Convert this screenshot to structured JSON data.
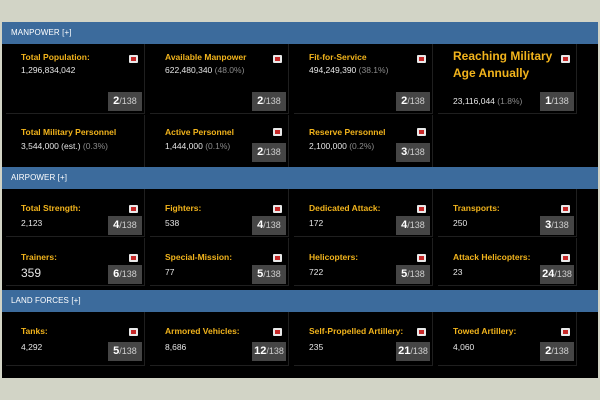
{
  "sections": {
    "manpower": {
      "title": "MANPOWER [+]",
      "items": [
        {
          "label": "Total Population:",
          "value": "1,296,834,042",
          "extra": "",
          "rank": "2",
          "total": "/138"
        },
        {
          "label": "Available Manpower",
          "value": "622,480,340",
          "extra": "(48.0%)",
          "rank": "2",
          "total": "/138"
        },
        {
          "label": "Fit-for-Service",
          "value": "494,249,390",
          "extra": "(38.1%)",
          "rank": "2",
          "total": "/138"
        },
        {
          "label": "Reaching Military Age Annually",
          "value": "23,116,044",
          "extra": "(1.8%)",
          "rank": "1",
          "total": "/138"
        },
        {
          "label": "Total Military Personnel",
          "value": "3,544,000 (est.)",
          "extra": "(0.3%)",
          "rank": "",
          "total": ""
        },
        {
          "label": "Active Personnel",
          "value": "1,444,000",
          "extra": "(0.1%)",
          "rank": "2",
          "total": "/138"
        },
        {
          "label": "Reserve Personnel",
          "value": "2,100,000",
          "extra": "(0.2%)",
          "rank": "3",
          "total": "/138"
        }
      ]
    },
    "airpower": {
      "title": "AIRPOWER [+]",
      "items": [
        {
          "label": "Total Strength:",
          "value": "2,123",
          "rank": "4",
          "total": "/138"
        },
        {
          "label": "Fighters:",
          "value": "538",
          "rank": "4",
          "total": "/138"
        },
        {
          "label": "Dedicated Attack:",
          "value": "172",
          "rank": "4",
          "total": "/138"
        },
        {
          "label": "Transports:",
          "value": "250",
          "rank": "3",
          "total": "/138"
        },
        {
          "label": "Trainers:",
          "value": "359",
          "rank": "6",
          "total": "/138"
        },
        {
          "label": "Special-Mission:",
          "value": "77",
          "rank": "5",
          "total": "/138"
        },
        {
          "label": "Helicopters:",
          "value": "722",
          "rank": "5",
          "total": "/138"
        },
        {
          "label": "Attack Helicopters:",
          "value": "23",
          "rank": "24",
          "total": "/138"
        }
      ]
    },
    "land_forces": {
      "title": "LAND FORCES [+]",
      "items": [
        {
          "label": "Tanks:",
          "value": "4,292",
          "rank": "5",
          "total": "/138"
        },
        {
          "label": "Armored Vehicles:",
          "value": "8,686",
          "rank": "12",
          "total": "/138"
        },
        {
          "label": "Self-Propelled Artillery:",
          "value": "235",
          "rank": "21",
          "total": "/138"
        },
        {
          "label": "Towed Artillery:",
          "value": "4,060",
          "rank": "2",
          "total": "/138"
        }
      ]
    }
  },
  "icons": {
    "flag": "flag-icon"
  },
  "colors": {
    "header_bg": "#3c6b9c",
    "label": "#f2b41c",
    "value": "#e6e6e6",
    "rank_bg": "#454545",
    "panel_bg": "#000000"
  }
}
